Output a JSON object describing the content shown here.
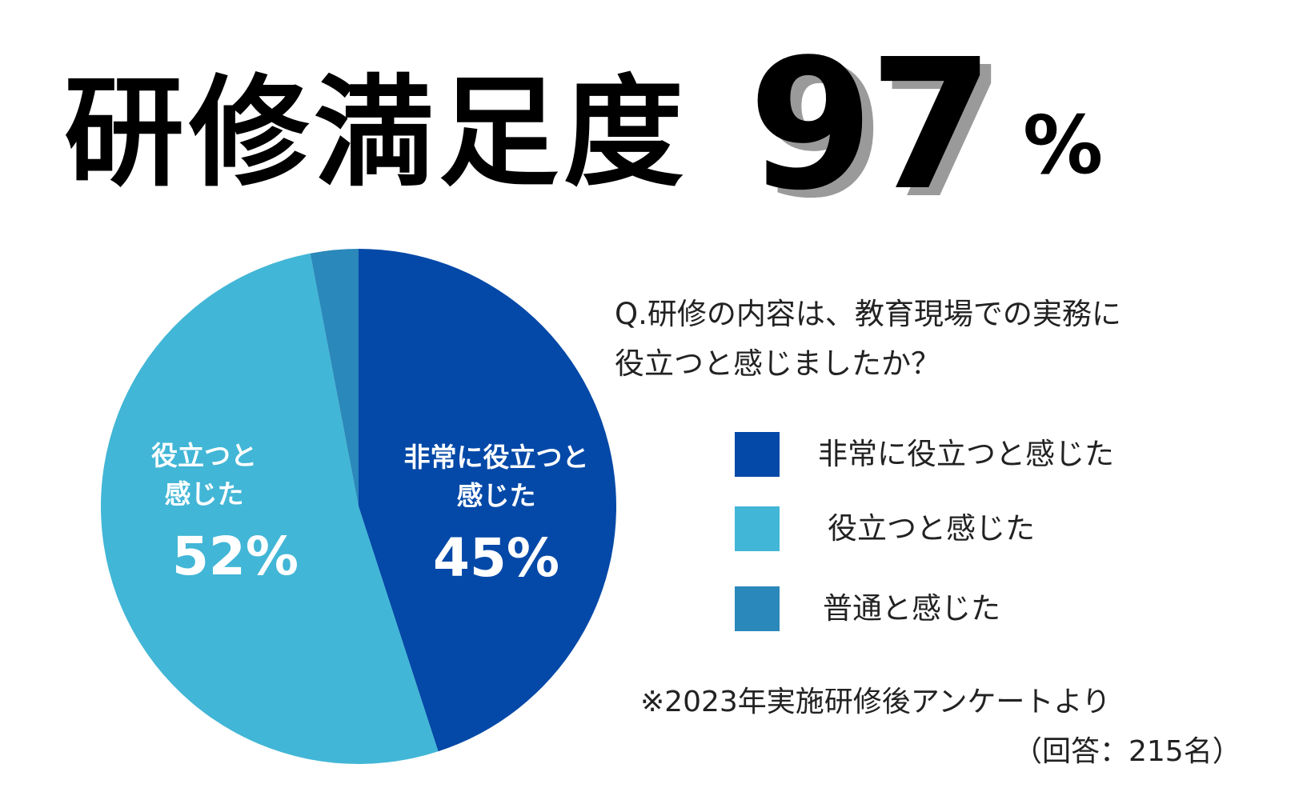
{
  "header": {
    "title": "研修満足度",
    "headline_value": "97",
    "headline_unit": "%"
  },
  "question": {
    "line1": "Q.研修の内容は、教育現場での実務に",
    "line2": "役立つと感じましたか？"
  },
  "legend": {
    "items": [
      {
        "label": "非常に役立つと感じた",
        "color": "#0449A8"
      },
      {
        "label": "役立つと感じた",
        "color": "#42B6D6"
      },
      {
        "label": "普通と感じた",
        "color": "#2A88BA"
      }
    ]
  },
  "pie_labels": [
    {
      "line1": "非常に役立つと",
      "line2": "感じた",
      "value": "45%"
    },
    {
      "line1": "役立つと",
      "line2": "感じた",
      "value": "52%"
    }
  ],
  "footnote": {
    "note": "※2023年実施研修後アンケートより",
    "respondents": "（回答：215名）"
  },
  "chart_data": {
    "type": "pie",
    "categories": [
      "非常に役立つと感じた",
      "役立つと感じた",
      "普通と感じた"
    ],
    "values": [
      45,
      52,
      3
    ],
    "unit": "%",
    "colors": [
      "#0449A8",
      "#42B6D6",
      "#2A88BA"
    ],
    "start": "12 o'clock, clockwise",
    "legend_position": "right"
  }
}
